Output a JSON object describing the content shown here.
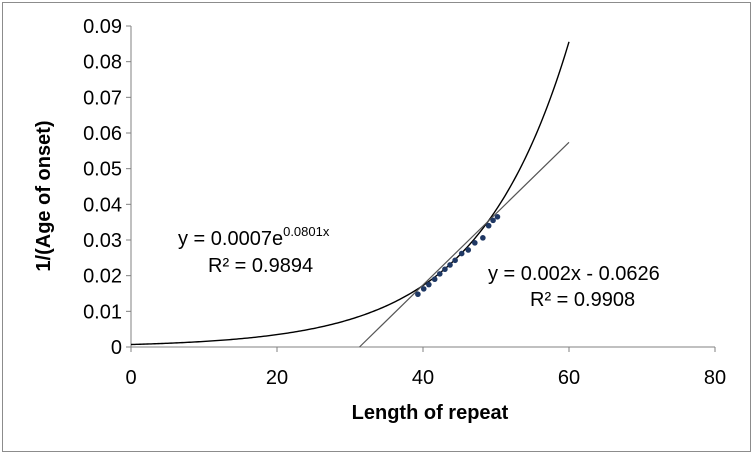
{
  "chart_data": {
    "type": "scatter",
    "title": "",
    "xlabel": "Length of repeat",
    "ylabel": "1/(Age of onset)",
    "xlim": [
      0,
      80
    ],
    "ylim": [
      0,
      0.09
    ],
    "x_ticks": [
      0,
      20,
      40,
      60,
      80
    ],
    "x_tick_labels": [
      "0",
      "20",
      "40",
      "60",
      "80"
    ],
    "y_ticks": [
      0,
      0.01,
      0.02,
      0.03,
      0.04,
      0.05,
      0.06,
      0.07,
      0.08,
      0.09
    ],
    "y_tick_labels": [
      "0",
      "0.01",
      "0.02",
      "0.03",
      "0.04",
      "0.05",
      "0.06",
      "0.07",
      "0.08",
      "0.09"
    ],
    "grid": false,
    "legend": "none",
    "series": [
      {
        "type": "scatter",
        "color": "#1f3864",
        "points": [
          {
            "x": 39.3,
            "y": 0.0148
          },
          {
            "x": 40.1,
            "y": 0.0163
          },
          {
            "x": 40.8,
            "y": 0.0175
          },
          {
            "x": 41.6,
            "y": 0.019
          },
          {
            "x": 42.3,
            "y": 0.0205
          },
          {
            "x": 43.0,
            "y": 0.0218
          },
          {
            "x": 43.7,
            "y": 0.023
          },
          {
            "x": 44.4,
            "y": 0.0243
          },
          {
            "x": 45.3,
            "y": 0.0262
          },
          {
            "x": 46.2,
            "y": 0.0272
          },
          {
            "x": 47.1,
            "y": 0.0292
          },
          {
            "x": 48.2,
            "y": 0.0306
          },
          {
            "x": 49.0,
            "y": 0.034
          },
          {
            "x": 49.6,
            "y": 0.0355
          },
          {
            "x": 50.2,
            "y": 0.0365
          }
        ]
      }
    ],
    "trendlines": [
      {
        "type": "exponential",
        "a": 0.0007,
        "b": 0.0801,
        "x_range": [
          0,
          60
        ],
        "color": "#000000",
        "equation_prefix": "y = 0.0007e",
        "equation_exponent": "0.0801x",
        "r2_label": "R² = 0.9894"
      },
      {
        "type": "linear",
        "slope": 0.002,
        "intercept": -0.0626,
        "x_range": [
          31.3,
          60
        ],
        "color": "#555555",
        "equation": "y = 0.002x - 0.0626",
        "r2_label": "R² = 0.9908"
      }
    ]
  }
}
